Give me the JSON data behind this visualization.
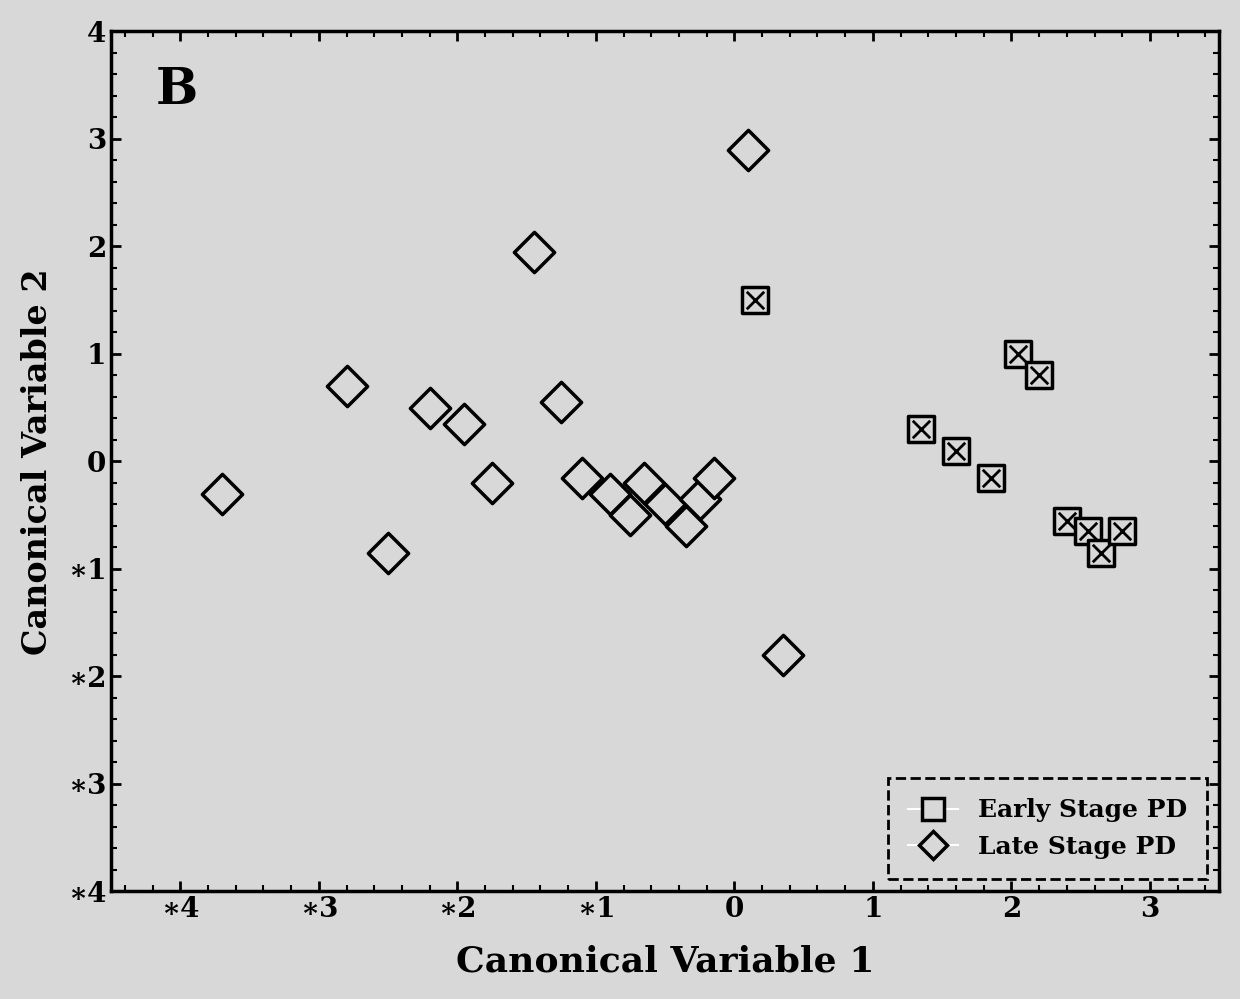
{
  "early_stage_x": [
    0.15,
    1.35,
    1.6,
    1.85,
    2.05,
    2.2,
    2.4,
    2.55,
    2.65,
    2.8
  ],
  "early_stage_y": [
    1.5,
    0.3,
    0.1,
    -0.15,
    1.0,
    0.8,
    -0.55,
    -0.65,
    -0.85,
    -0.65
  ],
  "late_stage_x": [
    -3.7,
    -2.8,
    -2.5,
    -2.2,
    -1.95,
    -1.75,
    -1.45,
    -1.25,
    -1.1,
    -0.9,
    -0.75,
    -0.65,
    -0.5,
    -0.35,
    -0.25,
    -0.15,
    0.1,
    0.35
  ],
  "late_stage_y": [
    -0.3,
    0.7,
    -0.85,
    0.5,
    0.35,
    -0.2,
    1.95,
    0.55,
    -0.15,
    -0.3,
    -0.5,
    -0.2,
    -0.4,
    -0.6,
    -0.35,
    -0.15,
    2.9,
    -1.8
  ],
  "xlabel": "Canonical Variable 1",
  "ylabel": "Canonical Variable 2",
  "panel_label": "B",
  "legend_labels": [
    "Early Stage PD",
    "Late Stage PD"
  ],
  "xlim": [
    -4.5,
    3.5
  ],
  "ylim": [
    -4,
    4
  ],
  "xticks": [
    -4,
    -3,
    -2,
    -1,
    0,
    1,
    2,
    3
  ],
  "yticks": [
    -4,
    -3,
    -2,
    -1,
    0,
    1,
    2,
    3,
    4
  ],
  "marker_size_early": 350,
  "marker_size_late": 420,
  "background_color": "#d8d8d8",
  "plot_bg_color": "#d8d8d8",
  "marker_color": "#000000",
  "marker_facecolor": "#d8d8d8"
}
